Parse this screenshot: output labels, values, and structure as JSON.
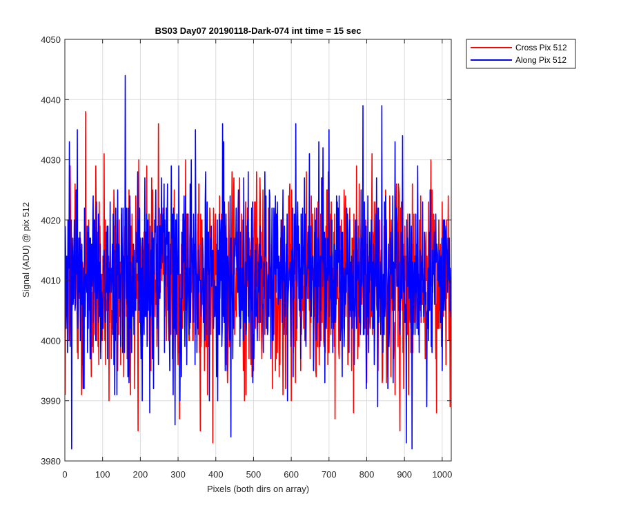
{
  "chart_data": {
    "type": "line",
    "title": "BS03 Day07 20190118-Dark-074 int time = 15 sec",
    "xlabel": "Pixels (both dirs on array)",
    "ylabel": "Signal (ADU) @ pix 512",
    "xlim": [
      0,
      1024
    ],
    "ylim": [
      3980,
      4050
    ],
    "xticks": [
      0,
      100,
      200,
      300,
      400,
      500,
      600,
      700,
      800,
      900,
      1000
    ],
    "yticks": [
      3980,
      3990,
      4000,
      4010,
      4020,
      4030,
      4040,
      4050
    ],
    "grid": true,
    "legend_position": "outside-top-right",
    "series": [
      {
        "name": "Cross Pix 512",
        "color": "#ff0000",
        "mean": 4010,
        "points_count": 1024,
        "key_points": [
          {
            "x": 1,
            "y": 3991
          },
          {
            "x": 8,
            "y": 4020
          },
          {
            "x": 14,
            "y": 4029
          },
          {
            "x": 27,
            "y": 4026
          },
          {
            "x": 33,
            "y": 3998
          },
          {
            "x": 44,
            "y": 3991
          },
          {
            "x": 55,
            "y": 4038
          },
          {
            "x": 70,
            "y": 3994
          },
          {
            "x": 82,
            "y": 4029
          },
          {
            "x": 90,
            "y": 3996
          },
          {
            "x": 104,
            "y": 4031
          },
          {
            "x": 117,
            "y": 3990
          },
          {
            "x": 130,
            "y": 4025
          },
          {
            "x": 140,
            "y": 3995
          },
          {
            "x": 156,
            "y": 3994
          },
          {
            "x": 170,
            "y": 4025
          },
          {
            "x": 185,
            "y": 3992
          },
          {
            "x": 196,
            "y": 4030
          },
          {
            "x": 206,
            "y": 3999
          },
          {
            "x": 217,
            "y": 4029
          },
          {
            "x": 228,
            "y": 3995
          },
          {
            "x": 233,
            "y": 4025
          },
          {
            "x": 248,
            "y": 4036
          },
          {
            "x": 260,
            "y": 4022
          },
          {
            "x": 275,
            "y": 4000
          },
          {
            "x": 290,
            "y": 4025
          },
          {
            "x": 300,
            "y": 3996
          },
          {
            "x": 304,
            "y": 3987
          },
          {
            "x": 320,
            "y": 4030
          },
          {
            "x": 340,
            "y": 4000
          },
          {
            "x": 355,
            "y": 4026
          },
          {
            "x": 370,
            "y": 3995
          },
          {
            "x": 392,
            "y": 3983
          },
          {
            "x": 410,
            "y": 4024
          },
          {
            "x": 430,
            "y": 3998
          },
          {
            "x": 448,
            "y": 4027
          },
          {
            "x": 476,
            "y": 3990
          },
          {
            "x": 492,
            "y": 4015
          },
          {
            "x": 500,
            "y": 3995
          },
          {
            "x": 525,
            "y": 4025
          },
          {
            "x": 550,
            "y": 3992
          },
          {
            "x": 575,
            "y": 4020
          },
          {
            "x": 585,
            "y": 3992
          },
          {
            "x": 600,
            "y": 3990
          },
          {
            "x": 625,
            "y": 3995
          },
          {
            "x": 640,
            "y": 4028
          },
          {
            "x": 650,
            "y": 3997
          },
          {
            "x": 680,
            "y": 4027
          },
          {
            "x": 700,
            "y": 3998
          },
          {
            "x": 716,
            "y": 3987
          },
          {
            "x": 740,
            "y": 4025
          },
          {
            "x": 760,
            "y": 3995
          },
          {
            "x": 780,
            "y": 4026
          },
          {
            "x": 800,
            "y": 3993
          },
          {
            "x": 820,
            "y": 4023
          },
          {
            "x": 830,
            "y": 3995
          },
          {
            "x": 850,
            "y": 4025
          },
          {
            "x": 864,
            "y": 3994
          },
          {
            "x": 888,
            "y": 3985
          },
          {
            "x": 900,
            "y": 4010
          },
          {
            "x": 911,
            "y": 3991
          },
          {
            "x": 940,
            "y": 4020
          },
          {
            "x": 955,
            "y": 3997
          },
          {
            "x": 970,
            "y": 4030
          },
          {
            "x": 985,
            "y": 3988
          },
          {
            "x": 1000,
            "y": 4023
          },
          {
            "x": 1010,
            "y": 3996
          },
          {
            "x": 1024,
            "y": 4010
          }
        ]
      },
      {
        "name": "Along Pix 512",
        "color": "#0000ff",
        "mean": 4010,
        "points_count": 1024,
        "key_points": [
          {
            "x": 1,
            "y": 4019
          },
          {
            "x": 12,
            "y": 4033
          },
          {
            "x": 18,
            "y": 3982
          },
          {
            "x": 25,
            "y": 4020
          },
          {
            "x": 40,
            "y": 4018
          },
          {
            "x": 60,
            "y": 3998
          },
          {
            "x": 75,
            "y": 4024
          },
          {
            "x": 95,
            "y": 3997
          },
          {
            "x": 110,
            "y": 4018
          },
          {
            "x": 130,
            "y": 3996
          },
          {
            "x": 150,
            "y": 4022
          },
          {
            "x": 160,
            "y": 4044
          },
          {
            "x": 170,
            "y": 3993
          },
          {
            "x": 184,
            "y": 4015
          },
          {
            "x": 193,
            "y": 4028
          },
          {
            "x": 205,
            "y": 3990
          },
          {
            "x": 220,
            "y": 4020
          },
          {
            "x": 235,
            "y": 3992
          },
          {
            "x": 250,
            "y": 4022
          },
          {
            "x": 264,
            "y": 3998
          },
          {
            "x": 282,
            "y": 4029
          },
          {
            "x": 290,
            "y": 4021
          },
          {
            "x": 305,
            "y": 3990
          },
          {
            "x": 320,
            "y": 4024
          },
          {
            "x": 335,
            "y": 4030
          },
          {
            "x": 350,
            "y": 3998
          },
          {
            "x": 372,
            "y": 4023
          },
          {
            "x": 390,
            "y": 4010
          },
          {
            "x": 405,
            "y": 3990
          },
          {
            "x": 418,
            "y": 4036
          },
          {
            "x": 425,
            "y": 3995
          },
          {
            "x": 440,
            "y": 3984
          },
          {
            "x": 460,
            "y": 4025
          },
          {
            "x": 475,
            "y": 4010
          },
          {
            "x": 495,
            "y": 4022
          },
          {
            "x": 510,
            "y": 4000
          },
          {
            "x": 530,
            "y": 4028
          },
          {
            "x": 550,
            "y": 4000
          },
          {
            "x": 575,
            "y": 4012
          },
          {
            "x": 590,
            "y": 3990
          },
          {
            "x": 612,
            "y": 4036
          },
          {
            "x": 630,
            "y": 4022
          },
          {
            "x": 648,
            "y": 4031
          },
          {
            "x": 660,
            "y": 4003
          },
          {
            "x": 685,
            "y": 4020
          },
          {
            "x": 700,
            "y": 4035
          },
          {
            "x": 720,
            "y": 4024
          },
          {
            "x": 740,
            "y": 3999
          },
          {
            "x": 755,
            "y": 4020
          },
          {
            "x": 775,
            "y": 4010
          },
          {
            "x": 790,
            "y": 4039
          },
          {
            "x": 805,
            "y": 3998
          },
          {
            "x": 830,
            "y": 4018
          },
          {
            "x": 840,
            "y": 4039
          },
          {
            "x": 860,
            "y": 4002
          },
          {
            "x": 875,
            "y": 4033
          },
          {
            "x": 895,
            "y": 4034
          },
          {
            "x": 905,
            "y": 3983
          },
          {
            "x": 920,
            "y": 3982
          },
          {
            "x": 935,
            "y": 4029
          },
          {
            "x": 950,
            "y": 4010
          },
          {
            "x": 968,
            "y": 4025
          },
          {
            "x": 985,
            "y": 4016
          },
          {
            "x": 1000,
            "y": 3995
          },
          {
            "x": 1015,
            "y": 4017
          },
          {
            "x": 1024,
            "y": 4005
          }
        ]
      }
    ]
  }
}
